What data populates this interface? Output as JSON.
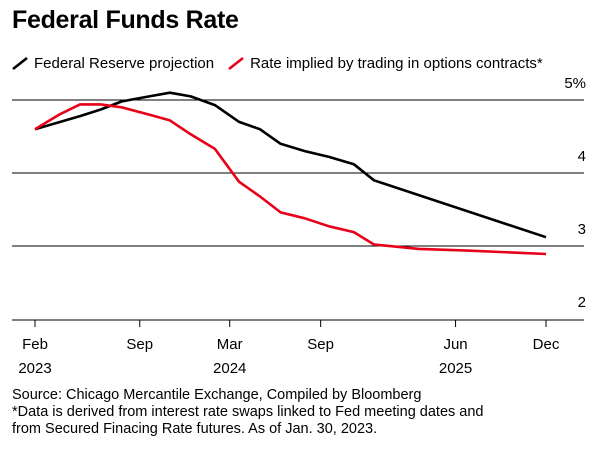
{
  "title": "Federal Funds Rate",
  "legend": [
    {
      "label": "Federal Reserve projection",
      "color": "#000000"
    },
    {
      "label": "Rate implied by trading in options contracts*",
      "color": "#e8001b"
    }
  ],
  "footer": {
    "source": "Source: Chicago Mercantile Exchange, Compiled by Bloomberg",
    "note_line1": "*Data is derived from interest rate swaps linked to Fed meeting dates and",
    "note_line2": "from Secured Finacing Rate futures. As of Jan. 30, 2023."
  },
  "chart_data": {
    "type": "line",
    "title": "Federal Funds Rate",
    "y_unit": "%",
    "ylim": [
      2,
      5.5
    ],
    "y_ticks": [
      {
        "value": 5,
        "label": "5%"
      },
      {
        "value": 4,
        "label": "4"
      },
      {
        "value": 3,
        "label": "3"
      },
      {
        "value": 2,
        "label": "2"
      }
    ],
    "gridlines_at": [
      5,
      4,
      3
    ],
    "x_ticks": [
      {
        "date": "2023-02-01",
        "line1": "Feb",
        "line2": "2023"
      },
      {
        "date": "2023-09-01",
        "line1": "Sep",
        "line2": ""
      },
      {
        "date": "2024-03-01",
        "line1": "Mar",
        "line2": "2024"
      },
      {
        "date": "2024-09-01",
        "line1": "Sep",
        "line2": ""
      },
      {
        "date": "2025-06-01",
        "line1": "Jun",
        "line2": "2025"
      },
      {
        "date": "2025-12-01",
        "line1": "Dec",
        "line2": ""
      }
    ],
    "series": [
      {
        "name": "Federal Reserve projection",
        "color": "#000000",
        "points": [
          {
            "x": "2023-02-01",
            "y": 4.6
          },
          {
            "x": "2023-05-03",
            "y": 4.78
          },
          {
            "x": "2023-06-14",
            "y": 4.87
          },
          {
            "x": "2023-07-26",
            "y": 4.98
          },
          {
            "x": "2023-09-20",
            "y": 5.05
          },
          {
            "x": "2023-11-01",
            "y": 5.1
          },
          {
            "x": "2023-12-13",
            "y": 5.05
          },
          {
            "x": "2024-01-31",
            "y": 4.93
          },
          {
            "x": "2024-03-20",
            "y": 4.7
          },
          {
            "x": "2024-05-01",
            "y": 4.6
          },
          {
            "x": "2024-06-12",
            "y": 4.4
          },
          {
            "x": "2024-07-31",
            "y": 4.3
          },
          {
            "x": "2024-09-18",
            "y": 4.22
          },
          {
            "x": "2024-11-07",
            "y": 4.12
          },
          {
            "x": "2024-12-18",
            "y": 3.9
          },
          {
            "x": "2025-12-01",
            "y": 3.12
          }
        ]
      },
      {
        "name": "Rate implied by trading in options contracts*",
        "color": "#e8001b",
        "points": [
          {
            "x": "2023-02-01",
            "y": 4.6
          },
          {
            "x": "2023-03-22",
            "y": 4.8
          },
          {
            "x": "2023-05-03",
            "y": 4.94
          },
          {
            "x": "2023-06-14",
            "y": 4.94
          },
          {
            "x": "2023-07-26",
            "y": 4.9
          },
          {
            "x": "2023-09-20",
            "y": 4.8
          },
          {
            "x": "2023-11-01",
            "y": 4.72
          },
          {
            "x": "2023-12-13",
            "y": 4.53
          },
          {
            "x": "2024-01-31",
            "y": 4.33
          },
          {
            "x": "2024-03-20",
            "y": 3.88
          },
          {
            "x": "2024-05-01",
            "y": 3.68
          },
          {
            "x": "2024-06-12",
            "y": 3.46
          },
          {
            "x": "2024-07-31",
            "y": 3.38
          },
          {
            "x": "2024-09-18",
            "y": 3.27
          },
          {
            "x": "2024-11-07",
            "y": 3.19
          },
          {
            "x": "2024-12-18",
            "y": 3.02
          },
          {
            "x": "2025-03-19",
            "y": 2.96
          },
          {
            "x": "2025-06-18",
            "y": 2.94
          },
          {
            "x": "2025-12-01",
            "y": 2.89
          }
        ]
      }
    ],
    "grid": true,
    "legend_position": "top"
  }
}
